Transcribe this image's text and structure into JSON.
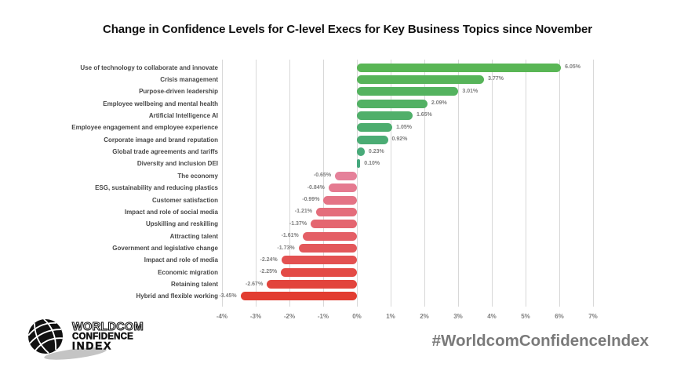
{
  "title": "Change in Confidence Levels for C-level Execs for Key Business Topics since November",
  "hashtag": "#WorldcomConfidenceIndex",
  "logo": {
    "line1": "WORLDCOM",
    "line2": "CONFIDENCE",
    "line3": "INDEX"
  },
  "chart_data": {
    "type": "bar",
    "orientation": "horizontal",
    "title": "Change in Confidence Levels for C-level Execs for Key Business Topics since November",
    "categories": [
      "Use of technology to collaborate and innovate",
      "Crisis management",
      "Purpose-driven leadership",
      "Employee wellbeing and mental health",
      "Artificial Intelligence AI",
      "Employee engagement and employee experience",
      "Corporate image and brand reputation",
      "Global trade agreements and tariffs",
      "Diversity and inclusion DEI",
      "The economy",
      "ESG, sustainability and reducing plastics",
      "Customer satisfaction",
      "Impact and role of social media",
      "Upskilling and reskilling",
      "Attracting talent",
      "Government and legislative change",
      "Impact and role of media",
      "Economic migration",
      "Retaining talent",
      "Hybrid and flexible working"
    ],
    "values": [
      6.05,
      3.77,
      3.01,
      2.09,
      1.65,
      1.05,
      0.92,
      0.23,
      0.1,
      -0.65,
      -0.84,
      -0.99,
      -1.21,
      -1.37,
      -1.61,
      -1.73,
      -2.24,
      -2.25,
      -2.67,
      -3.45
    ],
    "value_suffix": "%",
    "xlim": [
      -4,
      7
    ],
    "x_tick_values": [
      -4,
      -3,
      -2,
      -1,
      0,
      1,
      2,
      3,
      4,
      5,
      6,
      7
    ],
    "x_tick_labels": [
      "-4%",
      "-3%",
      "-2%",
      "-1%",
      "0%",
      "1%",
      "2%",
      "3%",
      "4%",
      "5%",
      "6%",
      "7%"
    ],
    "grid": true,
    "legend": false,
    "colors": {
      "green_start": "#59b655",
      "green_end": "#46a87e",
      "red_start": "#e5819a",
      "red_end": "#e23d31",
      "grid": "#d8d8d8",
      "value_label": "#7f7f7f",
      "category_label": "#474747",
      "title": "#111111",
      "hashtag": "#7a7a7a"
    }
  }
}
